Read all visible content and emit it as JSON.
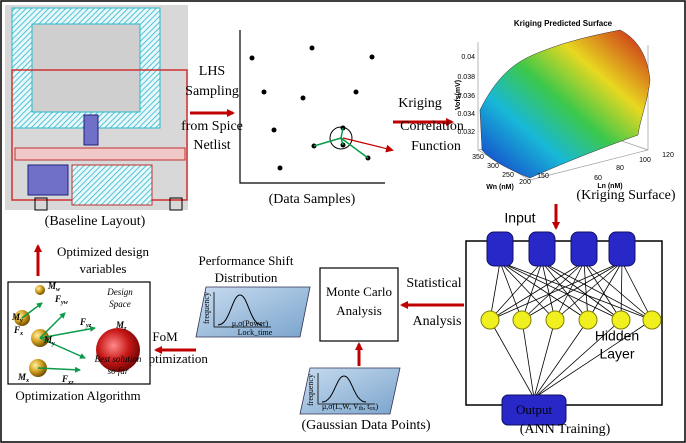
{
  "baseline_layout": {
    "caption": "(Baseline Layout)"
  },
  "lhs_step": {
    "lines": [
      "LHS",
      "Sampling",
      "from Spice",
      "Netlist"
    ]
  },
  "data_samples": {
    "caption": "(Data Samples)"
  },
  "kriging_step": {
    "lines": [
      "Kriging",
      "Correlation",
      "Function"
    ]
  },
  "kriging_surface": {
    "title": "Kriging Predicted Surface",
    "z_label": "Vofs(mV)",
    "x_label": "Wn (nM)",
    "y_label": "Ln (nM)",
    "z_ticks": [
      "0.04",
      "0.038",
      "0.036",
      "0.034",
      "0.032"
    ],
    "x_ticks": [
      "350",
      "300",
      "250",
      "200",
      "150"
    ],
    "y_ticks": [
      "60",
      "80",
      "100",
      "120"
    ],
    "caption": "(Kriging Surface)"
  },
  "ann": {
    "input": "Input",
    "hidden": [
      "Hidden",
      "Layer"
    ],
    "output": "Output",
    "caption": "(ANN Training)"
  },
  "statistical_step": {
    "lines": [
      "Statistical",
      "Analysis"
    ]
  },
  "monte_carlo": {
    "lines": [
      "Monte Carlo",
      "Analysis"
    ]
  },
  "performance_shift": {
    "title": [
      "Performance Shift",
      "Distribution"
    ],
    "y_label": "frequency",
    "x_label": "μ,σ(Power)",
    "x_label2": "Lock_time"
  },
  "gaussian": {
    "y_label": "frequency",
    "x_label": [
      "μ,σ(L,W, V",
      "th",
      ", t",
      "ox",
      ")"
    ],
    "caption": "(Gaussian Data Points)"
  },
  "fom_step": {
    "lines": [
      "FoM",
      "optimization"
    ]
  },
  "optimized_step": {
    "lines": [
      "Optimized design",
      "variables"
    ]
  },
  "optimization": {
    "design_space": [
      "Design",
      "Space"
    ],
    "best": [
      "Best solution",
      "so far"
    ],
    "symbols": [
      [
        "M",
        "w"
      ],
      [
        "F",
        "yw"
      ],
      [
        "M",
        "y"
      ],
      [
        "F",
        "x"
      ],
      [
        "M",
        "y"
      ],
      [
        "F",
        "yz"
      ],
      [
        "M",
        "z"
      ],
      [
        "M",
        "x"
      ],
      [
        "F",
        "xz"
      ]
    ],
    "caption": "Optimization Algorithm"
  }
}
